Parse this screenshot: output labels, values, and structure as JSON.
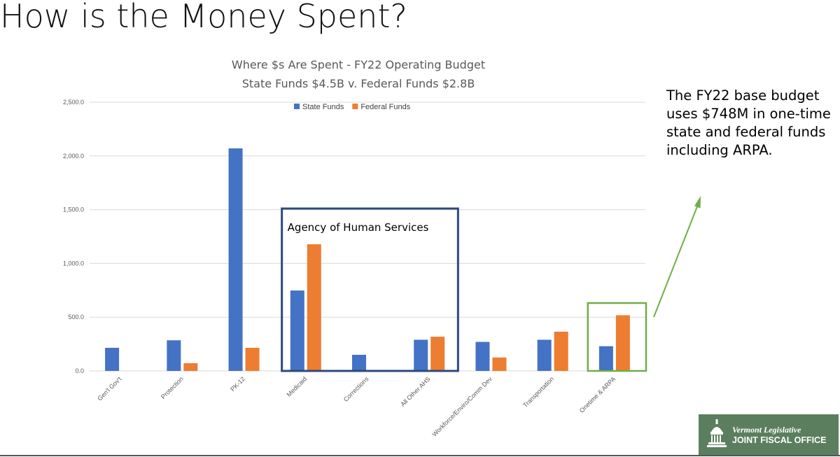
{
  "slide": {
    "title": "How is the Money Spent?",
    "callout": "The FY22 base budget uses $748M in one-time state and federal funds including ARPA.",
    "logo": {
      "line1": "Vermont Legislative",
      "line2": "JOINT FISCAL OFFICE",
      "icon": "capitol-dome-icon"
    }
  },
  "chart_data": {
    "type": "bar",
    "title": "Where $s Are Spent  - FY22 Operating Budget",
    "subtitle": "State Funds $4.5B v. Federal Funds $2.8B",
    "categories": [
      "Gen'l Gov't",
      "Protection",
      "PK-12",
      "Medicaid",
      "Corrections",
      "All Other AHS",
      "Workforce/Enviro/Comm Dev",
      "Transportation",
      "Onetime & ARPA"
    ],
    "series": [
      {
        "name": "State Funds",
        "color": "#4472c4",
        "values": [
          215,
          285,
          2070,
          748,
          150,
          290,
          270,
          290,
          230
        ]
      },
      {
        "name": "Federal Funds",
        "color": "#ed7d31",
        "values": [
          0,
          72,
          215,
          1178,
          8,
          318,
          125,
          365,
          518
        ]
      }
    ],
    "ylim": [
      0,
      2500
    ],
    "yticks": [
      "0.0",
      "500.0",
      "1,000.0",
      "1,500.0",
      "2,000.0",
      "2,500.0"
    ],
    "grid": true,
    "legend": "top-center",
    "annotations": {
      "group_box": {
        "label": "Agency of Human Services",
        "categories": [
          "Medicaid",
          "Corrections",
          "All Other AHS"
        ],
        "color": "#2e4a7d"
      },
      "highlight_box": {
        "categories": [
          "Onetime & ARPA"
        ],
        "color": "#70ad47"
      },
      "arrow_color": "#70ad47"
    }
  }
}
